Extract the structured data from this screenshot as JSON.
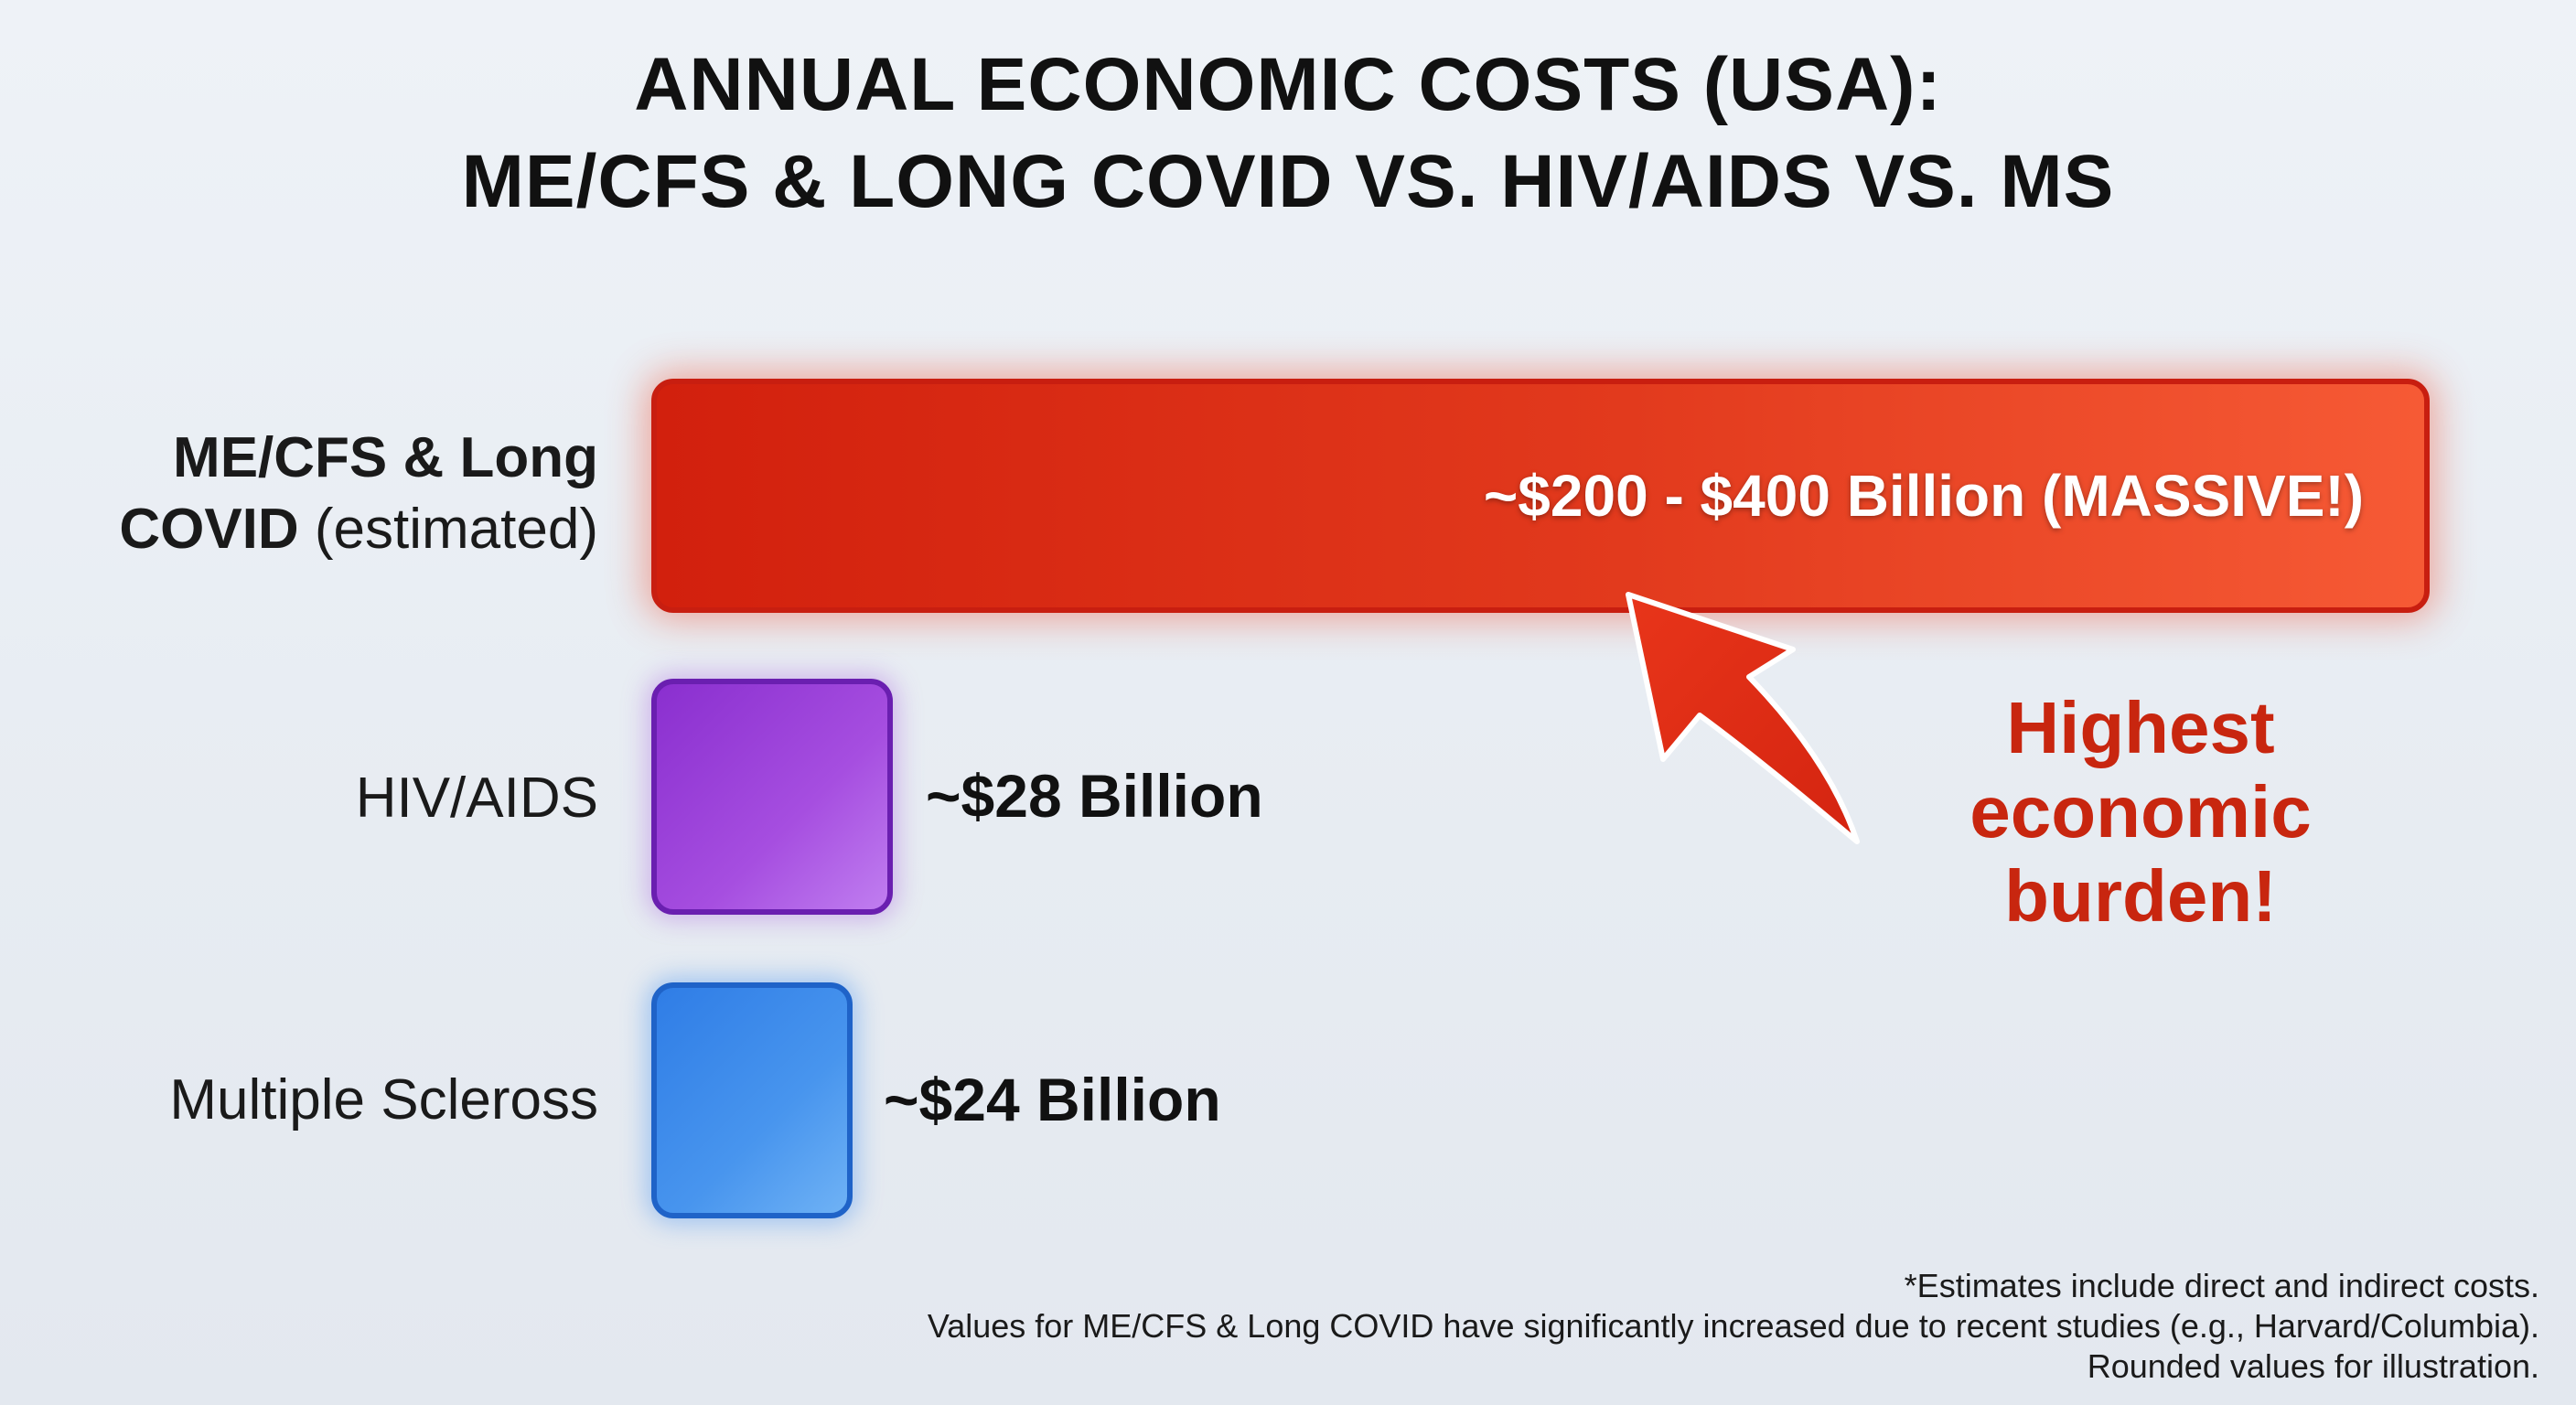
{
  "chart_data": {
    "type": "bar",
    "orientation": "horizontal",
    "title": [
      "ANNUAL ECONOMIC COSTS (USA):",
      "ME/CFS & LONG COVID VS. HIV/AIDS VS. MS"
    ],
    "categories": [
      {
        "bold": "ME/CFS & Long",
        "bold2": "COVID",
        "suffix": " (estimated)"
      },
      {
        "label": "HIV/AIDS"
      },
      {
        "label": "Multiple Scleross"
      }
    ],
    "series": [
      {
        "values": [
          300,
          28,
          24
        ],
        "value_ranges": [
          [
            200,
            400
          ],
          null,
          null
        ]
      }
    ],
    "value_labels": [
      "~$200 - $400 Billion (MASSIVE!)",
      "~$28 Billion",
      "~$24 Billion"
    ],
    "unit": "Billion USD",
    "colors": [
      "#e0301a",
      "#9a40d8",
      "#3a88ea"
    ],
    "annotation": [
      "Highest",
      "economic",
      "burden!"
    ],
    "annotation_color": "#c8260f",
    "grid": false,
    "legend": "none",
    "footnote": [
      "*Estimates include direct and indirect costs.",
      "Values for ME/CFS & Long COVID have significantly increased due to recent studies (e.g., Harvard/Columbia).",
      "Rounded values for illustration."
    ]
  }
}
